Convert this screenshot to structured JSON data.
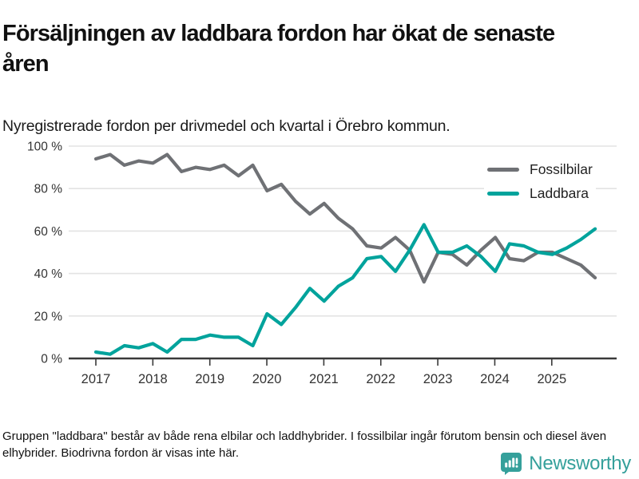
{
  "header": {
    "title": "Försäljningen av laddbara fordon har ökat de senaste åren",
    "subtitle": "Nyregistrerade fordon per drivmedel och kvartal i Örebro kommun."
  },
  "chart_data": {
    "type": "line",
    "title": "Försäljningen av laddbara fordon har ökat de senaste åren",
    "subtitle": "Nyregistrerade fordon per drivmedel och kvartal i Örebro kommun.",
    "categories": [
      "2017 Q1",
      "2017 Q2",
      "2017 Q3",
      "2017 Q4",
      "2018 Q1",
      "2018 Q2",
      "2018 Q3",
      "2018 Q4",
      "2019 Q1",
      "2019 Q2",
      "2019 Q3",
      "2019 Q4",
      "2020 Q1",
      "2020 Q2",
      "2020 Q3",
      "2020 Q4",
      "2021 Q1",
      "2021 Q2",
      "2021 Q3",
      "2021 Q4",
      "2022 Q1",
      "2022 Q2",
      "2022 Q3",
      "2022 Q4",
      "2023 Q1",
      "2023 Q2",
      "2023 Q3",
      "2023 Q4",
      "2024 Q1",
      "2024 Q2",
      "2024 Q3",
      "2024 Q4",
      "2025 Q1",
      "2025 Q2",
      "2025 Q3",
      "2025 Q4"
    ],
    "series": [
      {
        "name": "Fossilbilar",
        "color": "#6f7175",
        "values": [
          94,
          96,
          91,
          93,
          92,
          96,
          88,
          90,
          89,
          91,
          86,
          91,
          79,
          82,
          74,
          68,
          73,
          66,
          61,
          53,
          52,
          57,
          51,
          36,
          50,
          49,
          44,
          51,
          57,
          47,
          46,
          50,
          50,
          47,
          44,
          38
        ]
      },
      {
        "name": "Laddbara",
        "color": "#00a39c",
        "values": [
          3,
          2,
          6,
          5,
          7,
          3,
          9,
          9,
          11,
          10,
          10,
          6,
          21,
          16,
          24,
          33,
          27,
          34,
          38,
          47,
          48,
          41,
          51,
          63,
          50,
          50,
          53,
          48,
          41,
          54,
          53,
          50,
          49,
          52,
          56,
          61
        ]
      }
    ],
    "ylim": [
      0,
      100
    ],
    "yticks": [
      0,
      20,
      40,
      60,
      80,
      100
    ],
    "ytick_suffix": " %",
    "xticks": [
      "2017",
      "2018",
      "2019",
      "2020",
      "2021",
      "2022",
      "2023",
      "2024",
      "2025"
    ],
    "grid": true,
    "legend_position": "top-right",
    "unit": "percent"
  },
  "footer": {
    "note": "Gruppen \"laddbara\" består av både rena elbilar och laddhybrider. I fossilbilar ingår förutom bensin och diesel även elhybrider. Biodrivna fordon är visas inte här.",
    "brand": "Newsworthy"
  },
  "colors": {
    "laddbara_teal": "#00a39c",
    "fossil_gray": "#6f7175",
    "logo_teal": "#35a09b",
    "gridline": "#e3e3e3",
    "axis": "#3a3a3a"
  }
}
